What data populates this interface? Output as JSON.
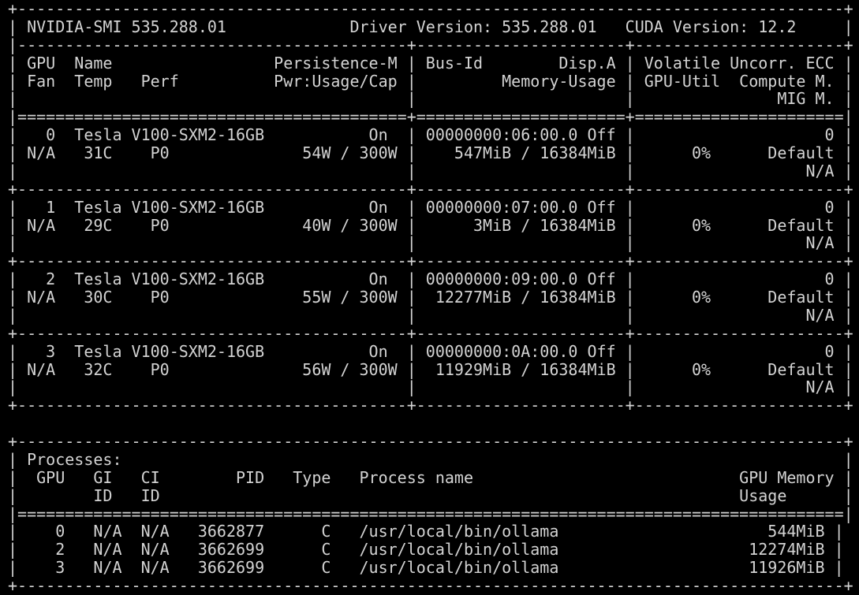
{
  "colors": {
    "background": "#000000",
    "foreground": "#d3d3d3"
  },
  "header": {
    "product": "NVIDIA-SMI 535.288.01",
    "driver_version_label": "Driver Version: 535.288.01",
    "cuda_version_label": "CUDA Version: 12.2"
  },
  "gpu_table": {
    "column_headers_row1": [
      "GPU",
      "Name",
      "Persistence-M",
      "Bus-Id",
      "Disp.A",
      "Volatile Uncorr. ECC"
    ],
    "column_headers_row2": [
      "Fan",
      "Temp",
      "Perf",
      "Pwr:Usage/Cap",
      "Memory-Usage",
      "GPU-Util",
      "Compute M."
    ],
    "column_headers_row3": [
      "MIG M."
    ],
    "gpus": [
      {
        "index": "0",
        "name": "Tesla V100-SXM2-16GB",
        "persistence_m": "On",
        "fan": "N/A",
        "temp": "31C",
        "perf": "P0",
        "power": "54W / 300W",
        "bus_id": "00000000:06:00.0",
        "disp_a": "Off",
        "memory_usage": "547MiB / 16384MiB",
        "gpu_util": "0%",
        "compute_mode": "Default",
        "uncorr_ecc": "0",
        "mig_m": "N/A"
      },
      {
        "index": "1",
        "name": "Tesla V100-SXM2-16GB",
        "persistence_m": "On",
        "fan": "N/A",
        "temp": "29C",
        "perf": "P0",
        "power": "40W / 300W",
        "bus_id": "00000000:07:00.0",
        "disp_a": "Off",
        "memory_usage": "3MiB / 16384MiB",
        "gpu_util": "0%",
        "compute_mode": "Default",
        "uncorr_ecc": "0",
        "mig_m": "N/A"
      },
      {
        "index": "2",
        "name": "Tesla V100-SXM2-16GB",
        "persistence_m": "On",
        "fan": "N/A",
        "temp": "30C",
        "perf": "P0",
        "power": "55W / 300W",
        "bus_id": "00000000:09:00.0",
        "disp_a": "Off",
        "memory_usage": "12277MiB / 16384MiB",
        "gpu_util": "0%",
        "compute_mode": "Default",
        "uncorr_ecc": "0",
        "mig_m": "N/A"
      },
      {
        "index": "3",
        "name": "Tesla V100-SXM2-16GB",
        "persistence_m": "On",
        "fan": "N/A",
        "temp": "32C",
        "perf": "P0",
        "power": "56W / 300W",
        "bus_id": "00000000:0A:00.0",
        "disp_a": "Off",
        "memory_usage": "11929MiB / 16384MiB",
        "gpu_util": "0%",
        "compute_mode": "Default",
        "uncorr_ecc": "0",
        "mig_m": "N/A"
      }
    ]
  },
  "process_table": {
    "title": "Processes:",
    "columns": [
      "GPU",
      "GI ID",
      "CI ID",
      "PID",
      "Type",
      "Process name",
      "GPU Memory Usage"
    ],
    "rows": [
      {
        "gpu": "0",
        "gi_id": "N/A",
        "ci_id": "N/A",
        "pid": "3662877",
        "type": "C",
        "process_name": "/usr/local/bin/ollama",
        "gpu_memory": "544MiB"
      },
      {
        "gpu": "2",
        "gi_id": "N/A",
        "ci_id": "N/A",
        "pid": "3662699",
        "type": "C",
        "process_name": "/usr/local/bin/ollama",
        "gpu_memory": "12274MiB"
      },
      {
        "gpu": "3",
        "gi_id": "N/A",
        "ci_id": "N/A",
        "pid": "3662699",
        "type": "C",
        "process_name": "/usr/local/bin/ollama",
        "gpu_memory": "11926MiB"
      }
    ]
  },
  "screen": {
    "lines": [
      "+---------------------------------------------------------------------------------------+",
      "| NVIDIA-SMI 535.288.01             Driver Version: 535.288.01   CUDA Version: 12.2     |",
      "|-----------------------------------------+----------------------+----------------------+",
      "| GPU  Name                 Persistence-M | Bus-Id        Disp.A | Volatile Uncorr. ECC |",
      "| Fan  Temp   Perf          Pwr:Usage/Cap |         Memory-Usage | GPU-Util  Compute M. |",
      "|                                         |                      |               MIG M. |",
      "|=========================================+======================+======================|",
      "|   0  Tesla V100-SXM2-16GB           On  | 00000000:06:00.0 Off |                    0 |",
      "| N/A   31C    P0              54W / 300W |    547MiB / 16384MiB |      0%      Default |",
      "|                                         |                      |                  N/A |",
      "+-----------------------------------------+----------------------+----------------------+",
      "|   1  Tesla V100-SXM2-16GB           On  | 00000000:07:00.0 Off |                    0 |",
      "| N/A   29C    P0              40W / 300W |      3MiB / 16384MiB |      0%      Default |",
      "|                                         |                      |                  N/A |",
      "+-----------------------------------------+----------------------+----------------------+",
      "|   2  Tesla V100-SXM2-16GB           On  | 00000000:09:00.0 Off |                    0 |",
      "| N/A   30C    P0              55W / 300W |  12277MiB / 16384MiB |      0%      Default |",
      "|                                         |                      |                  N/A |",
      "+-----------------------------------------+----------------------+----------------------+",
      "|   3  Tesla V100-SXM2-16GB           On  | 00000000:0A:00.0 Off |                    0 |",
      "| N/A   32C    P0              56W / 300W |  11929MiB / 16384MiB |      0%      Default |",
      "|                                         |                      |                  N/A |",
      "+-----------------------------------------+----------------------+----------------------+",
      "",
      "+---------------------------------------------------------------------------------------+",
      "| Processes:                                                                            |",
      "|  GPU   GI   CI        PID   Type   Process name                            GPU Memory |",
      "|        ID   ID                                                             Usage      |",
      "|=======================================================================================|",
      "|    0   N/A  N/A   3662877      C   /usr/local/bin/ollama                      544MiB |",
      "|    2   N/A  N/A   3662699      C   /usr/local/bin/ollama                    12274MiB |",
      "|    3   N/A  N/A   3662699      C   /usr/local/bin/ollama                    11926MiB |",
      "+---------------------------------------------------------------------------------------+"
    ]
  }
}
